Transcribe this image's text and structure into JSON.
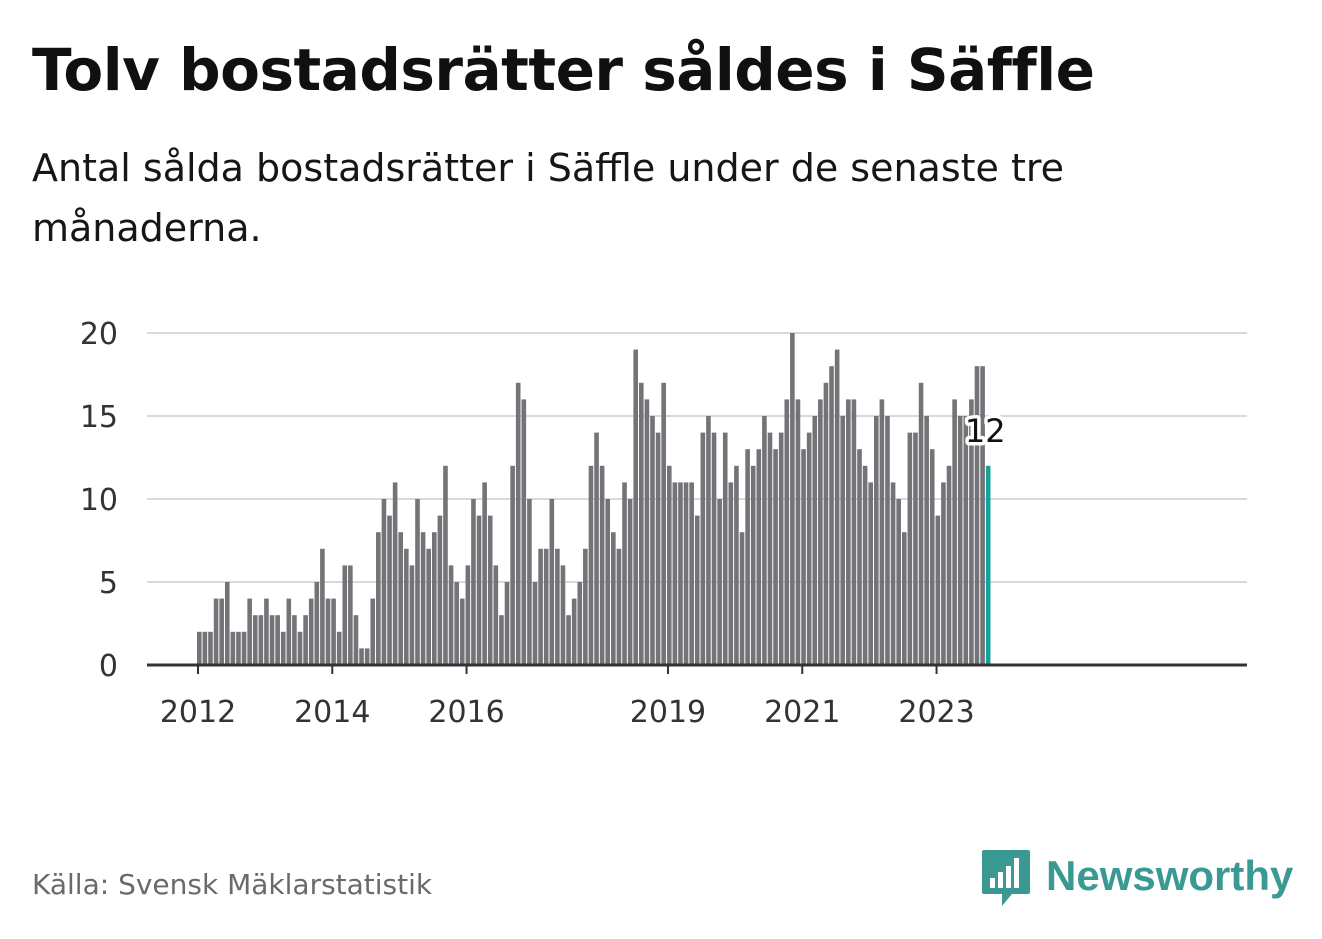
{
  "header": {
    "title": "Tolv bostadsrätter såldes i Säffle",
    "subtitle": "Antal sålda bostadsrätter i Säffle under de senaste tre månaderna."
  },
  "footer": {
    "source": "Källa: Svensk Mäklarstatistik",
    "brand": "Newsworthy",
    "brand_icon": "bar-chart-speech-bubble-icon"
  },
  "colors": {
    "bar": "#737378",
    "highlight": "#17a19a",
    "grid": "#d9d9d9",
    "axis": "#333333",
    "brand": "#3a9a93"
  },
  "chart_data": {
    "type": "bar",
    "title": "Tolv bostadsrätter såldes i Säffle",
    "subtitle": "Antal sålda bostadsrätter i Säffle under de senaste tre månaderna.",
    "xlabel": "",
    "ylabel": "",
    "ylim": [
      0,
      20
    ],
    "yticks": [
      0,
      5,
      10,
      15,
      20
    ],
    "xtick_labels": [
      "2012",
      "2014",
      "2016",
      "2019",
      "2021",
      "2023"
    ],
    "grid": true,
    "x_start": "2012-01",
    "frequency": "monthly",
    "values": [
      2,
      2,
      2,
      4,
      4,
      5,
      2,
      2,
      2,
      4,
      3,
      3,
      4,
      3,
      3,
      2,
      4,
      3,
      2,
      3,
      4,
      5,
      7,
      4,
      4,
      2,
      6,
      6,
      3,
      1,
      1,
      4,
      8,
      10,
      9,
      11,
      8,
      7,
      6,
      10,
      8,
      7,
      8,
      9,
      12,
      6,
      5,
      4,
      6,
      10,
      9,
      11,
      9,
      6,
      3,
      5,
      12,
      17,
      16,
      10,
      5,
      7,
      7,
      10,
      7,
      6,
      3,
      4,
      5,
      7,
      12,
      14,
      12,
      10,
      8,
      7,
      11,
      10,
      19,
      17,
      16,
      15,
      14,
      17,
      12,
      11,
      11,
      11,
      11,
      9,
      14,
      15,
      14,
      10,
      14,
      11,
      12,
      8,
      13,
      12,
      13,
      15,
      14,
      13,
      14,
      16,
      20,
      16,
      13,
      14,
      15,
      16,
      17,
      18,
      19,
      15,
      16,
      16,
      13,
      12,
      11,
      15,
      16,
      15,
      11,
      10,
      8,
      14,
      14,
      17,
      15,
      13,
      9,
      11,
      12,
      16,
      15,
      15,
      16,
      18,
      18,
      12
    ],
    "highlight": {
      "label": "12",
      "value": 12
    }
  }
}
